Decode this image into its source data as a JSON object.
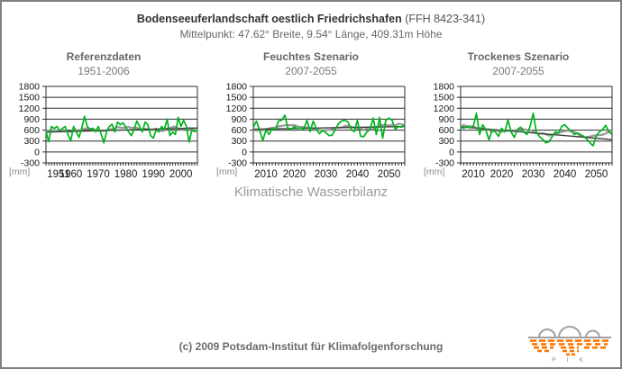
{
  "header": {
    "title_bold": "Bodenseeuferlandschaft oestlich Friedrichshafen",
    "title_normal": "(FFH 8423-341)",
    "subtitle": "Mittelpunkt: 47.62° Breite, 9.54° Länge, 409.31m Höhe"
  },
  "axis_caption": "Klimatische Wasserbilanz",
  "footer": {
    "copyright": "(c) 2009 Potsdam-Institut für Klimafolgenforschung",
    "logo_text": "P I K"
  },
  "colors": {
    "series_green": "#00b41e",
    "trend_dark": "#3c3c3c",
    "smoothed_gray": "#9a9a9a",
    "grid": "#2b2b2b",
    "border": "#808080",
    "logo_orange": "#ff7700",
    "logo_gray": "#a0a0a0"
  },
  "chart_data": [
    {
      "type": "line",
      "title": "Referenzdaten",
      "subtitle": "1951-2006",
      "ylabel": "[mm]",
      "ylim": [
        -300,
        1800
      ],
      "yticks": [
        1800,
        1500,
        1200,
        900,
        600,
        300,
        0,
        -300
      ],
      "xlim": [
        1951,
        2006
      ],
      "xticks": [
        1951,
        1960,
        1970,
        1980,
        1990,
        2000
      ],
      "grid": true,
      "legend": "none",
      "series": [
        {
          "name": "wasserbilanz",
          "color": "#00b41e",
          "x_start": 1951,
          "values": [
            560,
            280,
            700,
            650,
            700,
            580,
            650,
            700,
            480,
            300,
            700,
            550,
            400,
            650,
            980,
            700,
            620,
            650,
            550,
            700,
            500,
            250,
            550,
            700,
            760,
            550,
            820,
            750,
            800,
            680,
            550,
            450,
            620,
            850,
            700,
            550,
            820,
            750,
            450,
            380,
            600,
            550,
            700,
            620,
            900,
            450,
            550,
            480,
            950,
            700,
            870,
            700,
            270,
            600,
            560,
            620
          ]
        },
        {
          "name": "trend",
          "color": "#3c3c3c",
          "trend": [
            545,
            660
          ]
        },
        {
          "name": "smoothed",
          "color": "#9a9a9a",
          "smooth_window": 9
        }
      ]
    },
    {
      "type": "line",
      "title": "Feuchtes Szenario",
      "subtitle": "2007-2055",
      "ylabel": "[mm]",
      "ylim": [
        -300,
        1800
      ],
      "yticks": [
        1800,
        1500,
        1200,
        900,
        600,
        300,
        0,
        -300
      ],
      "xlim": [
        2007,
        2055
      ],
      "xticks": [
        2010,
        2020,
        2030,
        2040,
        2050
      ],
      "grid": true,
      "legend": "none",
      "series": [
        {
          "name": "wasserbilanz",
          "color": "#00b41e",
          "x_start": 2007,
          "values": [
            680,
            850,
            600,
            310,
            600,
            480,
            650,
            620,
            850,
            870,
            1010,
            640,
            620,
            700,
            640,
            660,
            620,
            870,
            560,
            850,
            620,
            500,
            600,
            530,
            450,
            460,
            620,
            780,
            850,
            870,
            830,
            620,
            560,
            870,
            430,
            420,
            550,
            620,
            930,
            480,
            950,
            380,
            870,
            930,
            870,
            620,
            700,
            680,
            750
          ]
        },
        {
          "name": "trend",
          "color": "#3c3c3c",
          "trend": [
            625,
            700
          ]
        },
        {
          "name": "smoothed",
          "color": "#9a9a9a",
          "smooth_window": 9
        }
      ]
    },
    {
      "type": "line",
      "title": "Trockenes Szenario",
      "subtitle": "2007-2055",
      "ylabel": "[mm]",
      "ylim": [
        -300,
        1800
      ],
      "yticks": [
        1800,
        1500,
        1200,
        900,
        600,
        300,
        0,
        -300
      ],
      "xlim": [
        2007,
        2055
      ],
      "xticks": [
        2010,
        2020,
        2030,
        2040,
        2050
      ],
      "grid": true,
      "legend": "none",
      "series": [
        {
          "name": "wasserbilanz",
          "color": "#00b41e",
          "x_start": 2007,
          "values": [
            680,
            650,
            700,
            660,
            700,
            1060,
            480,
            750,
            600,
            330,
            620,
            550,
            430,
            650,
            550,
            880,
            550,
            400,
            620,
            680,
            550,
            480,
            700,
            1060,
            550,
            420,
            350,
            250,
            280,
            420,
            550,
            520,
            700,
            750,
            650,
            580,
            480,
            520,
            480,
            430,
            350,
            250,
            170,
            450,
            550,
            620,
            730,
            550,
            480
          ]
        },
        {
          "name": "trend",
          "color": "#3c3c3c",
          "trend": [
            690,
            340
          ]
        },
        {
          "name": "smoothed",
          "color": "#9a9a9a",
          "smooth_window": 9
        }
      ]
    }
  ]
}
